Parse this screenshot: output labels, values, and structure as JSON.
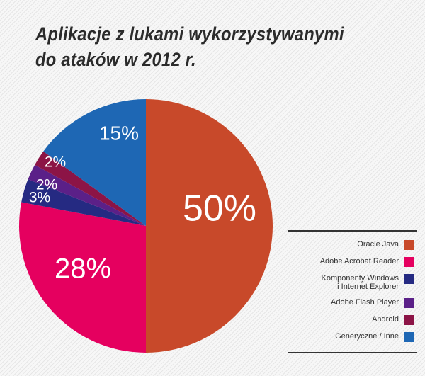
{
  "title": {
    "line1": "Aplikacje z lukami wykorzystywanymi",
    "line2": "do ataków w 2012 r."
  },
  "colors": {
    "oracle_java": "#c8492a",
    "adobe_acrobat": "#e5005f",
    "windows_ie": "#252a82",
    "flash": "#5b2088",
    "android": "#8c1446",
    "generic": "#1e67b4",
    "label_text": "#ffffff"
  },
  "legend": {
    "items": [
      {
        "label": "Oracle Java",
        "lines": [
          "Oracle Java"
        ],
        "color": "#c8492a"
      },
      {
        "label": "Adobe Acrobat Reader",
        "lines": [
          "Adobe Acrobat Reader"
        ],
        "color": "#e5005f"
      },
      {
        "label": "Komponenty Windows i Internet Explorer",
        "lines": [
          "Komponenty Windows",
          "i Internet Explorer"
        ],
        "color": "#252a82"
      },
      {
        "label": "Adobe Flash Player",
        "lines": [
          "Adobe Flash Player"
        ],
        "color": "#5b2088"
      },
      {
        "label": "Android",
        "lines": [
          "Android"
        ],
        "color": "#8c1446"
      },
      {
        "label": "Generyczne / Inne",
        "lines": [
          "Generyczne / Inne"
        ],
        "color": "#1e67b4"
      }
    ]
  },
  "chart_data": {
    "type": "pie",
    "title": "Aplikacje z lukami wykorzystywanymi do ataków w 2012 r.",
    "categories": [
      "Oracle Java",
      "Adobe Acrobat Reader",
      "Komponenty Windows i Internet Explorer",
      "Adobe Flash Player",
      "Android",
      "Generyczne / Inne"
    ],
    "values": [
      50,
      28,
      3,
      2,
      2,
      15
    ],
    "data_labels": [
      "50%",
      "28%",
      "3%",
      "2%",
      "2%",
      "15%"
    ],
    "colors": [
      "#c8492a",
      "#e5005f",
      "#252a82",
      "#5b2088",
      "#8c1446",
      "#1e67b4"
    ],
    "start_angle": "12 o'clock",
    "direction": "clockwise",
    "legend_position": "right-bottom",
    "units": "%"
  }
}
